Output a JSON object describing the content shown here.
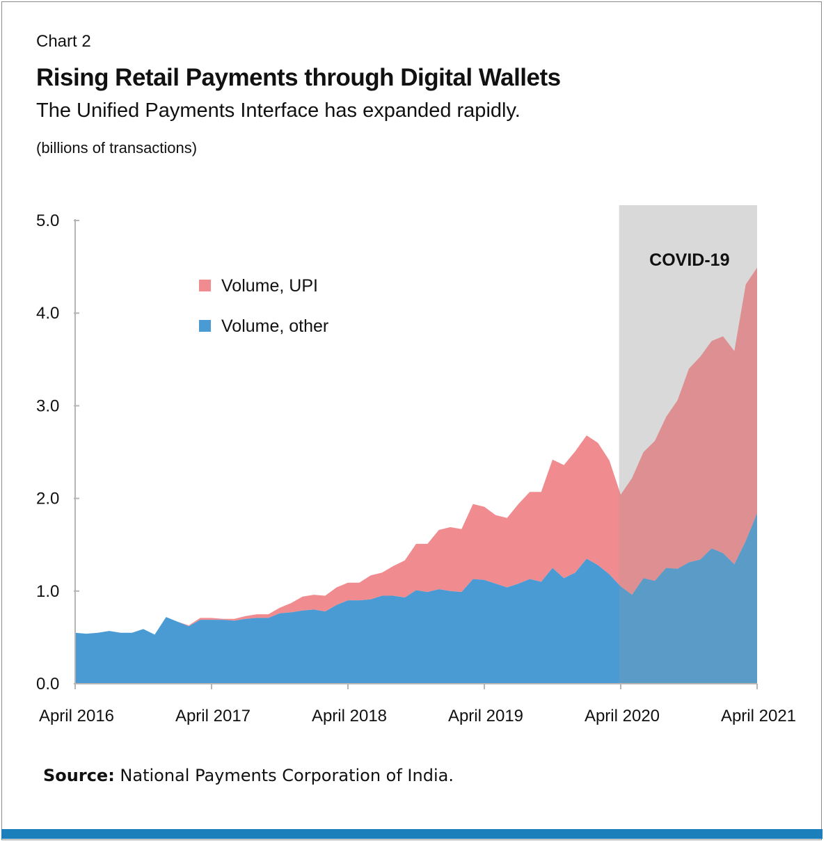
{
  "header": {
    "chart_number": "Chart 2",
    "title": "Rising Retail Payments through Digital Wallets",
    "subtitle": "The Unified Payments Interface has expanded rapidly.",
    "unit": "(billions of transactions)"
  },
  "source": {
    "label": "Source:",
    "text": " National Payments Corporation of India."
  },
  "colors": {
    "upi": "#f08c8f",
    "other": "#4a9bd4",
    "shade": "#ebebeb",
    "accent_bar": "#1a7fbb"
  },
  "chart_data": {
    "type": "area",
    "stacked": true,
    "title": "Rising Retail Payments through Digital Wallets",
    "ylabel": "(billions of transactions)",
    "ylim": [
      0,
      5
    ],
    "yticks": [
      "0.0",
      "1.0",
      "2.0",
      "3.0",
      "4.0",
      "5.0"
    ],
    "xticks": [
      {
        "label": "April 2016",
        "index": 0
      },
      {
        "label": "April 2017",
        "index": 12
      },
      {
        "label": "April 2018",
        "index": 24
      },
      {
        "label": "April 2019",
        "index": 36
      },
      {
        "label": "April 2020",
        "index": 48
      },
      {
        "label": "April 2021",
        "index": 60
      }
    ],
    "x_start": "2016-04",
    "x_frequency": "monthly",
    "legend_position": "top-left",
    "annotation": {
      "text": "COVID-19",
      "from_index": 47,
      "to_index": 60
    },
    "series": [
      {
        "name": "Volume, other",
        "color": "#4a9bd4",
        "values": [
          0.55,
          0.54,
          0.55,
          0.57,
          0.55,
          0.55,
          0.59,
          0.53,
          0.72,
          0.67,
          0.62,
          0.69,
          0.69,
          0.69,
          0.68,
          0.7,
          0.71,
          0.71,
          0.76,
          0.77,
          0.79,
          0.8,
          0.78,
          0.85,
          0.9,
          0.9,
          0.91,
          0.95,
          0.95,
          0.93,
          1.01,
          0.99,
          1.02,
          1.0,
          0.99,
          1.13,
          1.12,
          1.08,
          1.04,
          1.08,
          1.13,
          1.1,
          1.25,
          1.14,
          1.2,
          1.35,
          1.28,
          1.18,
          1.05,
          0.96,
          1.14,
          1.11,
          1.25,
          1.24,
          1.31,
          1.34,
          1.46,
          1.41,
          1.29,
          1.54,
          1.84
        ]
      },
      {
        "name": "Volume, UPI",
        "color": "#f08c8f",
        "values": [
          0.0,
          0.0,
          0.0,
          0.0,
          0.0,
          0.0,
          0.0,
          0.0,
          0.0,
          0.0,
          0.01,
          0.02,
          0.02,
          0.01,
          0.02,
          0.03,
          0.04,
          0.04,
          0.06,
          0.1,
          0.15,
          0.16,
          0.17,
          0.19,
          0.19,
          0.19,
          0.26,
          0.25,
          0.32,
          0.4,
          0.5,
          0.52,
          0.64,
          0.69,
          0.68,
          0.81,
          0.79,
          0.74,
          0.75,
          0.86,
          0.94,
          0.97,
          1.17,
          1.22,
          1.31,
          1.33,
          1.32,
          1.23,
          0.99,
          1.26,
          1.36,
          1.51,
          1.63,
          1.82,
          2.09,
          2.19,
          2.24,
          2.34,
          2.3,
          2.77,
          2.65
        ]
      }
    ]
  }
}
